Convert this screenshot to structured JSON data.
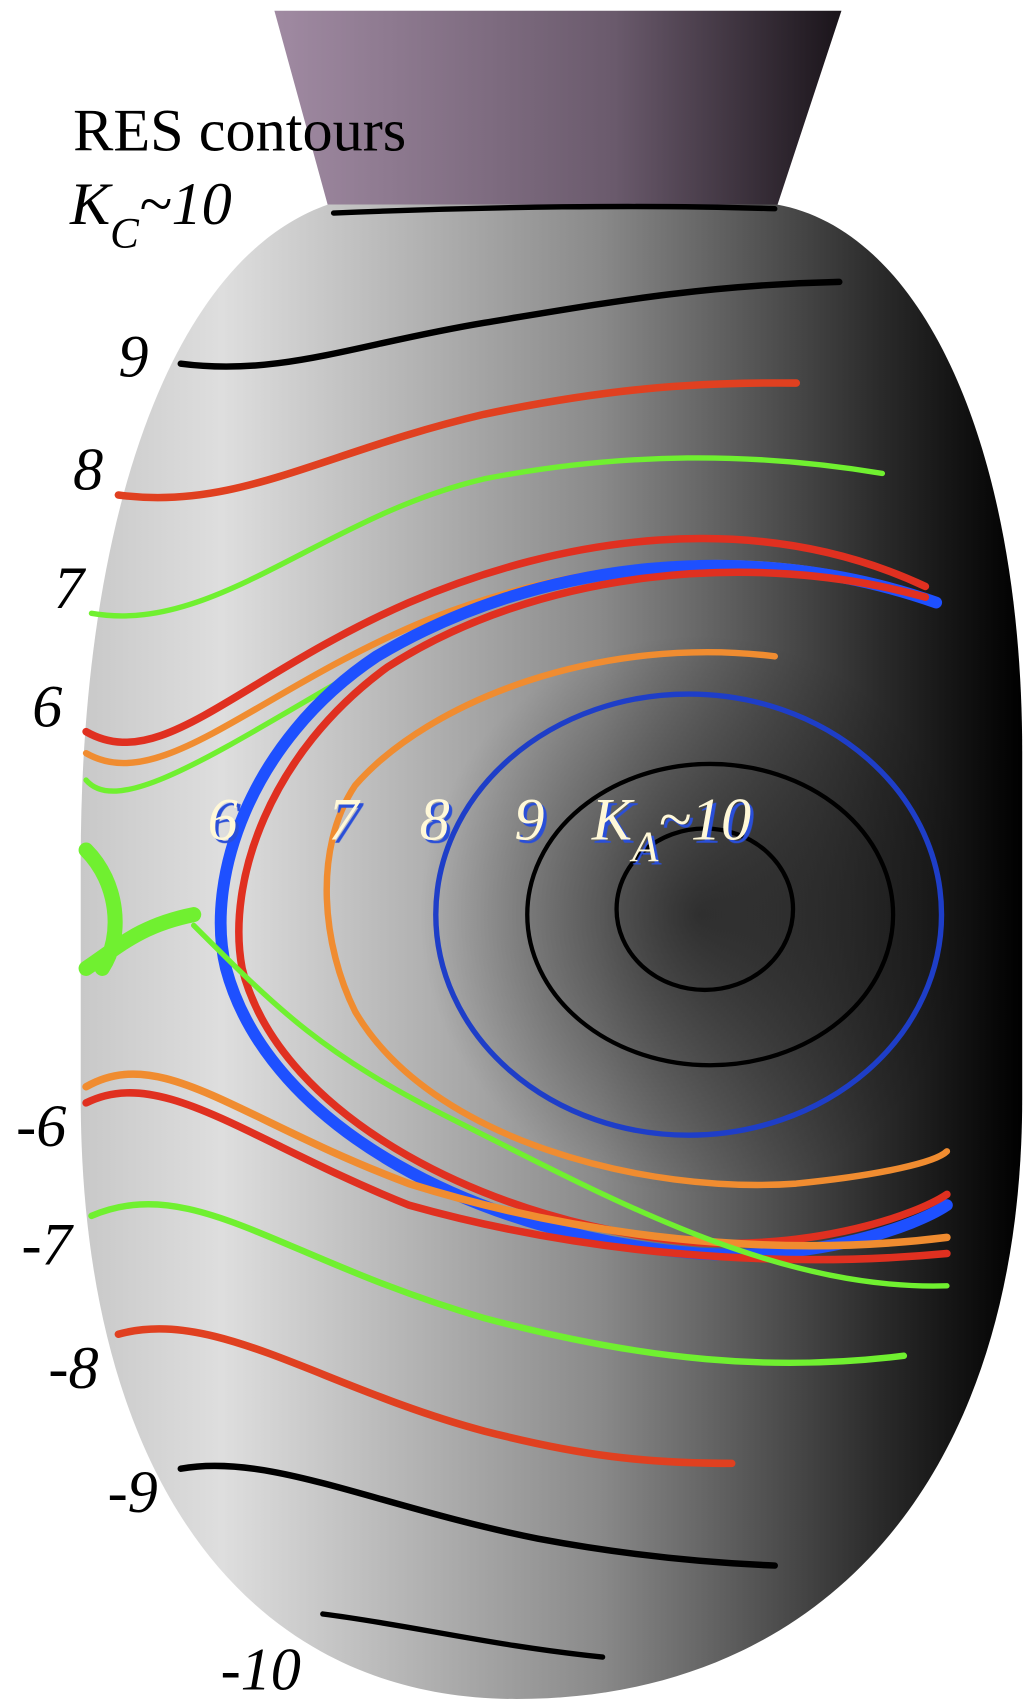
{
  "title": "RES contours",
  "kc_label": {
    "base": "K",
    "sub": "C",
    "rest": "~10"
  },
  "left_labels": [
    "9",
    "8",
    "7",
    "6",
    "-6",
    "-7",
    "-8",
    "-9",
    "-10"
  ],
  "inner_labels": [
    "6",
    "7",
    "8",
    "9"
  ],
  "ka_label": {
    "base": "K",
    "sub": "A",
    "rest": "~10"
  }
}
